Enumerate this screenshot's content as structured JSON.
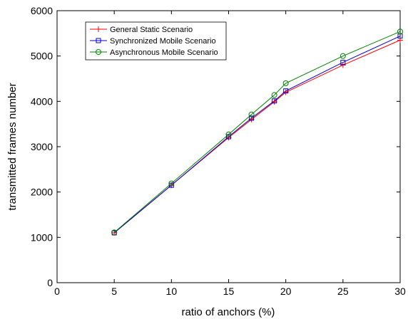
{
  "chart_data": {
    "type": "line",
    "title": "",
    "xlabel": "ratio of anchors (%)",
    "ylabel": "transmitted frames number",
    "xlim": [
      0,
      30
    ],
    "ylim": [
      0,
      6000
    ],
    "x_ticks": [
      0,
      5,
      10,
      15,
      20,
      25,
      30
    ],
    "y_ticks": [
      0,
      1000,
      2000,
      3000,
      4000,
      5000,
      6000
    ],
    "x_tick_labels": [
      "0",
      "5",
      "10",
      "15",
      "20",
      "25",
      "30"
    ],
    "y_tick_labels": [
      "0",
      "1000",
      "2000",
      "3000",
      "4000",
      "5000",
      "6000"
    ],
    "grid": false,
    "legend_position": "top-left",
    "x": [
      5,
      10,
      15,
      17,
      19,
      20,
      25,
      30
    ],
    "series": [
      {
        "name": "General Static Scenario",
        "color": "#ff0000",
        "marker": "plus",
        "values": [
          1100,
          2150,
          3200,
          3600,
          3990,
          4200,
          4800,
          5350
        ]
      },
      {
        "name": "Synchronized Mobile Scenario",
        "color": "#0000cc",
        "marker": "square",
        "values": [
          1100,
          2150,
          3220,
          3630,
          4010,
          4230,
          4860,
          5440
        ]
      },
      {
        "name": "Asynchronous Mobile Scenario",
        "color": "#008000",
        "marker": "circle",
        "values": [
          1110,
          2190,
          3270,
          3710,
          4140,
          4400,
          5000,
          5540
        ]
      }
    ]
  }
}
